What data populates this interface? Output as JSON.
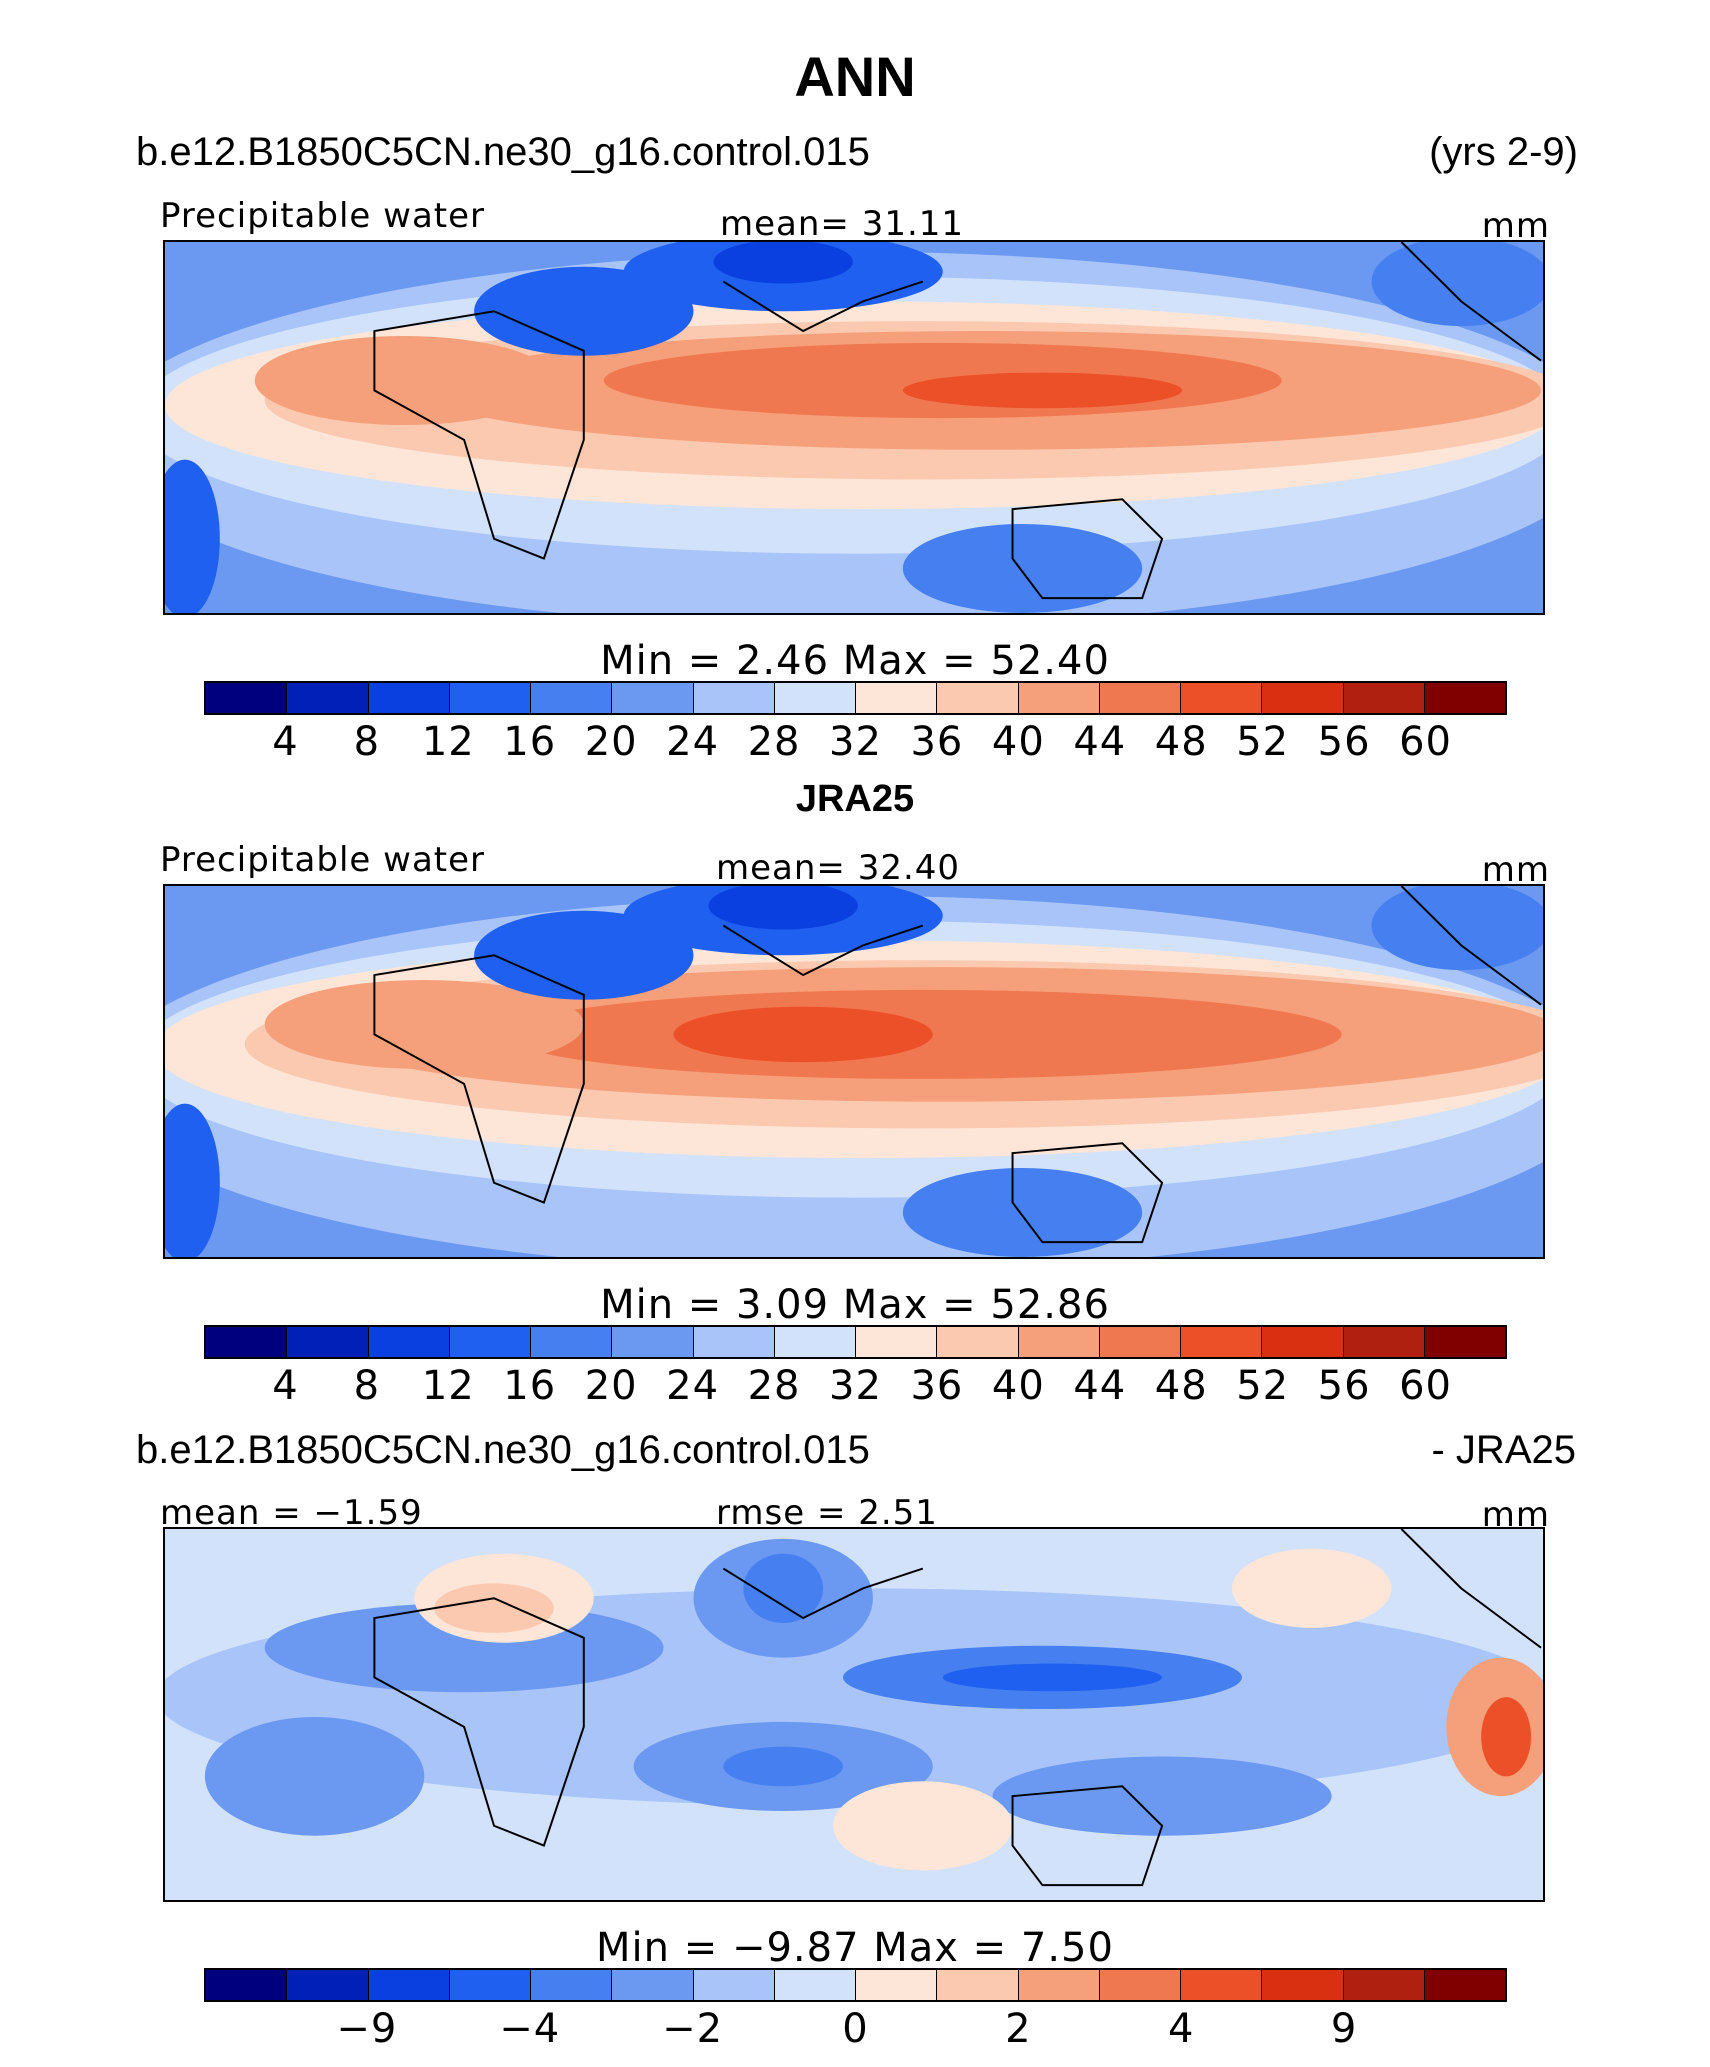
{
  "title": "ANN",
  "colors": [
    "#00007f",
    "#0020b8",
    "#0a40e0",
    "#2060f0",
    "#4680f0",
    "#6b98f0",
    "#a8c4f8",
    "#d2e2fa",
    "#fde6d8",
    "#fbc8b0",
    "#f5a07a",
    "#f07850",
    "#ec5028",
    "#d83010",
    "#b02010",
    "#800000"
  ],
  "panel1": {
    "case": "b.e12.B1850C5CN.ne30_g16.control.015",
    "years": "(yrs 2-9)",
    "left": "Precipitable  water",
    "center": "mean=   31.11",
    "units": "mm",
    "minmax": "Min  =     2.46  Max  =    52.40",
    "ticks": [
      "4",
      "8",
      "12",
      "16",
      "20",
      "24",
      "28",
      "32",
      "36",
      "40",
      "44",
      "48",
      "52",
      "56",
      "60"
    ]
  },
  "panel2": {
    "title": "JRA25",
    "left": "Precipitable  water",
    "center": "mean=   32.40",
    "units": "mm",
    "minmax": "Min  =     3.09  Max  =    52.86",
    "ticks": [
      "4",
      "8",
      "12",
      "16",
      "20",
      "24",
      "28",
      "32",
      "36",
      "40",
      "44",
      "48",
      "52",
      "56",
      "60"
    ]
  },
  "panel3": {
    "case": "b.e12.B1850C5CN.ne30_g16.control.015",
    "right": "- JRA25",
    "left": "mean  =   −1.59",
    "center": "rmse  =     2.51",
    "units": "mm",
    "minmax": "Min  =   −9.87  Max  =     7.50",
    "ticks": [
      "−9",
      "−4",
      "−2",
      "0",
      "2",
      "4",
      "9"
    ]
  }
}
